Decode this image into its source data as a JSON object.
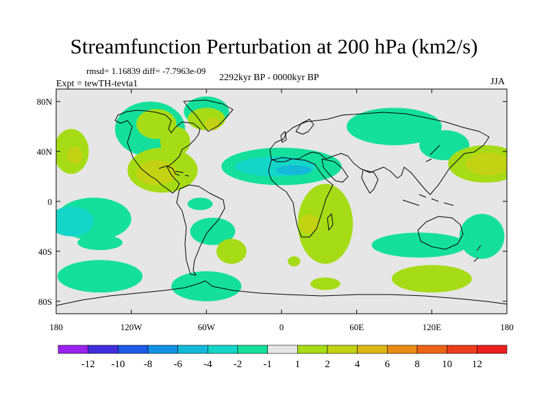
{
  "title": "Streamfunction Perturbation at 200 hPa (km2/s)",
  "stats": "rmsd= 1.16839 diff= -7.7963e-09",
  "period": "2292kyr BP - 0000kyr BP",
  "experiment": "Expt = tewTH-tevta1",
  "season": "JJA",
  "lat_ticks": [
    "80N",
    "40N",
    "0",
    "40S",
    "80S"
  ],
  "lon_ticks": [
    "180",
    "120W",
    "60W",
    "0",
    "60E",
    "120E",
    "180"
  ],
  "colorbar": {
    "labels": [
      "-12",
      "-10",
      "-8",
      "-6",
      "-4",
      "-2",
      "-1",
      "1",
      "2",
      "4",
      "6",
      "8",
      "10",
      "12"
    ],
    "colors": [
      "#9b22ee",
      "#3f2edc",
      "#1e5be6",
      "#1192e4",
      "#14b9da",
      "#14d6c8",
      "#14e09c",
      "#e6e6e6",
      "#a6dc16",
      "#c4d214",
      "#dcb614",
      "#e88c14",
      "#ec6416",
      "#ec3c1c",
      "#ea1f1f"
    ]
  },
  "chart_data": {
    "type": "heatmap",
    "title": "Streamfunction Perturbation at 200 hPa (km2/s)",
    "projection": "cylindrical equidistant",
    "lon_range": [
      -180,
      180
    ],
    "lat_range": [
      -90,
      90
    ],
    "units": "km2/s",
    "contour_levels": [
      -12,
      -10,
      -8,
      -6,
      -4,
      -2,
      -1,
      1,
      2,
      4,
      6,
      8,
      10,
      12
    ],
    "regions": [
      {
        "lon": -168,
        "lat": 40,
        "rx": 14,
        "ry": 18,
        "value": 1.5
      },
      {
        "lon": -165,
        "lat": 37,
        "rx": 6,
        "ry": 7,
        "value": 3
      },
      {
        "lon": -105,
        "lat": 58,
        "rx": 28,
        "ry": 22,
        "value": -1.5
      },
      {
        "lon": -100,
        "lat": 62,
        "rx": 16,
        "ry": 12,
        "value": 1.5
      },
      {
        "lon": -85,
        "lat": 48,
        "rx": 12,
        "ry": 12,
        "value": 1.5
      },
      {
        "lon": -60,
        "lat": 72,
        "rx": 18,
        "ry": 12,
        "value": -1.5
      },
      {
        "lon": -60,
        "lat": 66,
        "rx": 15,
        "ry": 9,
        "value": 1.5
      },
      {
        "lon": -55,
        "lat": 62,
        "rx": 6,
        "ry": 5,
        "value": 3
      },
      {
        "lon": -95,
        "lat": 25,
        "rx": 28,
        "ry": 18,
        "value": 1.5
      },
      {
        "lon": -100,
        "lat": 23,
        "rx": 16,
        "ry": 10,
        "value": 3
      },
      {
        "lon": -65,
        "lat": -2,
        "rx": 10,
        "ry": 5,
        "value": -1.5
      },
      {
        "lon": 0,
        "lat": 28,
        "rx": 48,
        "ry": 15,
        "value": -1.5
      },
      {
        "lon": -5,
        "lat": 28,
        "rx": 32,
        "ry": 8,
        "value": -3
      },
      {
        "lon": 10,
        "lat": 25,
        "rx": 14,
        "ry": 4,
        "value": -5
      },
      {
        "lon": 35,
        "lat": -18,
        "rx": 22,
        "ry": 32,
        "value": 1.5
      },
      {
        "lon": 22,
        "lat": -18,
        "rx": 8,
        "ry": 8,
        "value": 3
      },
      {
        "lon": 90,
        "lat": 60,
        "rx": 38,
        "ry": 15,
        "value": -1.5
      },
      {
        "lon": 130,
        "lat": 45,
        "rx": 20,
        "ry": 12,
        "value": -1.5
      },
      {
        "lon": 163,
        "lat": 30,
        "rx": 30,
        "ry": 15,
        "value": 1.5
      },
      {
        "lon": 165,
        "lat": 30,
        "rx": 18,
        "ry": 9,
        "value": 3
      },
      {
        "lon": -150,
        "lat": -14,
        "rx": 30,
        "ry": 17,
        "value": -1.5
      },
      {
        "lon": -168,
        "lat": -16,
        "rx": 18,
        "ry": 12,
        "value": -3
      },
      {
        "lon": -55,
        "lat": -24,
        "rx": 18,
        "ry": 11,
        "value": -1.5
      },
      {
        "lon": -145,
        "lat": -33,
        "rx": 18,
        "ry": 6,
        "value": -1.5
      },
      {
        "lon": -40,
        "lat": -40,
        "rx": 12,
        "ry": 10,
        "value": 1.5
      },
      {
        "lon": 110,
        "lat": -35,
        "rx": 38,
        "ry": 10,
        "value": -1.5
      },
      {
        "lon": 160,
        "lat": -28,
        "rx": 18,
        "ry": 18,
        "value": -1.5
      },
      {
        "lon": -145,
        "lat": -60,
        "rx": 34,
        "ry": 13,
        "value": -1.5
      },
      {
        "lon": -60,
        "lat": -68,
        "rx": 28,
        "ry": 12,
        "value": -1.5
      },
      {
        "lon": 120,
        "lat": -62,
        "rx": 32,
        "ry": 11,
        "value": 1.5
      },
      {
        "lon": 35,
        "lat": -66,
        "rx": 12,
        "ry": 5,
        "value": 1.5
      },
      {
        "lon": 10,
        "lat": -48,
        "rx": 5,
        "ry": 4,
        "value": 1.5
      }
    ]
  }
}
